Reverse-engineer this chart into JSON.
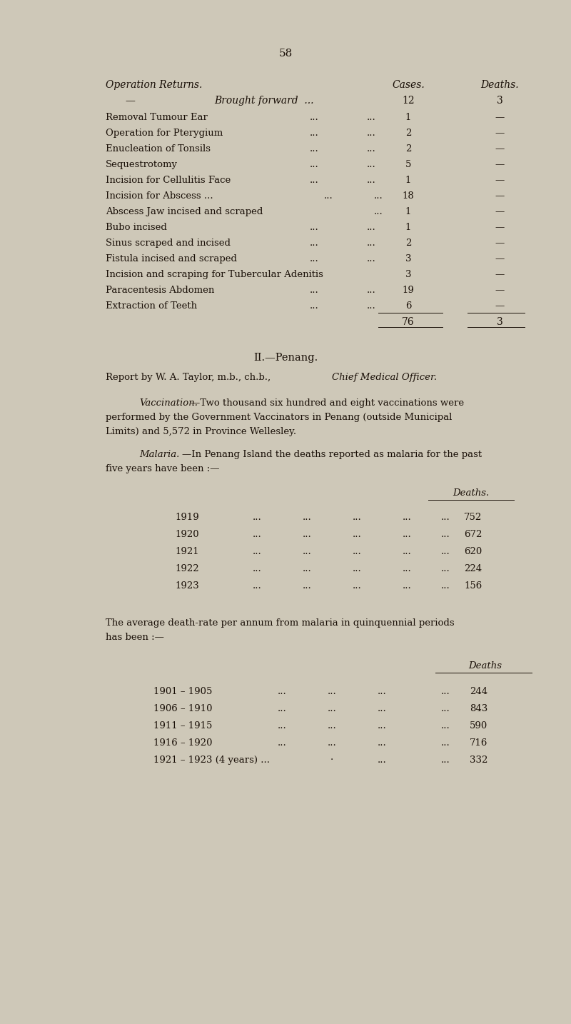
{
  "bg_color": "#cec8b8",
  "text_color": "#1a1008",
  "page_number": "58",
  "section1_header_operation": "Operation Returns.",
  "section1_header_cases": "Cases.",
  "section1_header_deaths": "Deaths.",
  "brought_forward_label": "—",
  "brought_forward_mid": "Brought forward  ...",
  "brought_forward_cases": "12",
  "brought_forward_deaths": "3",
  "table_rows": [
    {
      "label": "Removal Tumour Ear",
      "d1": "...",
      "d2": "...",
      "cases": "1",
      "deaths": "—"
    },
    {
      "label": "Operation for Pterygium",
      "d1": "...",
      "d2": "...",
      "cases": "2",
      "deaths": "—"
    },
    {
      "label": "Enucleation of Tonsils",
      "d1": "...",
      "d2": "...",
      "cases": "2",
      "deaths": "—"
    },
    {
      "label": "Sequestrotomy",
      "d1": "...",
      "d2": "...",
      "cases": "5",
      "deaths": "—"
    },
    {
      "label": "Incision for Cellulitis Face",
      "d1": "...",
      "d2": "...",
      "cases": "1",
      "deaths": "—"
    },
    {
      "label": "Incision for Abscess ...",
      "d1": "...",
      "d2": "...",
      "cases": "18",
      "deaths": "—"
    },
    {
      "label": "Abscess Jaw incised and scraped",
      "d1": "",
      "d2": "...",
      "cases": "1",
      "deaths": "—"
    },
    {
      "label": "Bubo incised",
      "d1": "...",
      "d2": "...",
      "cases": "1",
      "deaths": "—"
    },
    {
      "label": "Sinus scraped and incised",
      "d1": "...",
      "d2": "...",
      "cases": "2",
      "deaths": "—"
    },
    {
      "label": "Fistula incised and scraped",
      "d1": "...",
      "d2": "...",
      "cases": "3",
      "deaths": "—"
    },
    {
      "label": "Incision and scraping for Tubercular Adenitis",
      "d1": "",
      "d2": "",
      "cases": "3",
      "deaths": "—"
    },
    {
      "label": "Paracentesis Abdomen",
      "d1": "...",
      "d2": "...",
      "cases": "19",
      "deaths": "—"
    },
    {
      "label": "Extraction of Teeth",
      "d1": "...",
      "d2": "...",
      "cases": "6",
      "deaths": "—"
    }
  ],
  "total_cases": "76",
  "total_deaths": "3",
  "sec2_title": "II.—Penang.",
  "sec2_report_pre": "Report by W. A. Taylor, m.b., ch.b., ",
  "sec2_report_italic": "Chief Medical Officer.",
  "vac_title": "Vaccination.",
  "vac_line1": "—Two thousand six hundred and eight vaccinations were",
  "vac_line2": "performed by the Government Vaccinators in Penang (outside Municipal",
  "vac_line3": "Limits) and 5,572 in Province Wellesley.",
  "mal_title": "Malaria.",
  "mal_line1": "—In Penang Island the deaths reported as malaria for the past",
  "mal_line2": "five years have been :—",
  "mal_deaths_header": "Deaths.",
  "malaria_years": [
    {
      "year": "1919",
      "deaths": "752"
    },
    {
      "year": "1920",
      "deaths": "672"
    },
    {
      "year": "1921",
      "deaths": "620"
    },
    {
      "year": "1922",
      "deaths": "224"
    },
    {
      "year": "1923",
      "deaths": "156"
    }
  ],
  "quin_line1": "The average death-rate per annum from malaria in quinquennial periods",
  "quin_line2": "has been :—",
  "quin_deaths_header": "Deaths",
  "quinquennial_periods": [
    {
      "period": "1901 – 1905",
      "d1": "...",
      "d2": "...",
      "d3": "...",
      "deaths": "244"
    },
    {
      "period": "1906 – 1910",
      "d1": "...",
      "d2": "...",
      "d3": "...",
      "deaths": "843"
    },
    {
      "period": "1911 – 1915",
      "d1": "...",
      "d2": "...",
      "d3": "...",
      "deaths": "590"
    },
    {
      "period": "1916 – 1920",
      "d1": "...",
      "d2": "...",
      "d3": "...",
      "deaths": "716"
    },
    {
      "period": "1921 – 1923 (4 years) ...",
      "d1": "",
      "d2": "·",
      "d3": "...",
      "deaths": "332"
    }
  ]
}
